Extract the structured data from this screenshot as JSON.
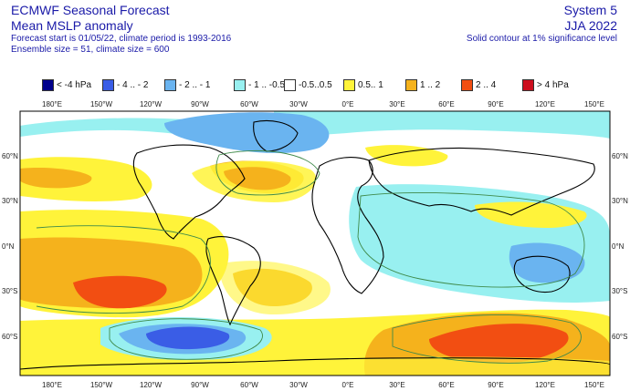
{
  "header": {
    "title": "ECMWF Seasonal Forecast",
    "subtitle": "Mean MSLP anomaly",
    "line1": "Forecast start is 01/05/22, climate period is 1993-2016",
    "line2": "Ensemble size = 51, climate size = 600",
    "system": "System 5",
    "season": "JJA 2022",
    "note": "Solid contour at 1% significance level"
  },
  "legend": [
    {
      "label": "< -4 hPa",
      "color": "#00008c"
    },
    {
      "label": "- 4 .. - 2",
      "color": "#3a5de6"
    },
    {
      "label": "- 2 .. - 1",
      "color": "#6ab4f0"
    },
    {
      "label": "- 1 .. -0.5",
      "color": "#98f0f0"
    },
    {
      "label": "-0.5..0.5",
      "color": "#ffffff"
    },
    {
      "label": "0.5.. 1",
      "color": "#fff33a"
    },
    {
      "label": "1 .. 2",
      "color": "#f5b21c"
    },
    {
      "label": "2 .. 4",
      "color": "#f24e12"
    },
    {
      "label": "> 4 hPa",
      "color": "#cc0e1e"
    }
  ],
  "map": {
    "lon_ticks": [
      "180°E",
      "150°W",
      "120°W",
      "90°W",
      "60°W",
      "30°W",
      "0°E",
      "30°E",
      "60°E",
      "90°E",
      "120°E",
      "150°E"
    ],
    "lat_ticks": [
      "60°N",
      "30°N",
      "0°N",
      "30°S",
      "60°S"
    ]
  }
}
